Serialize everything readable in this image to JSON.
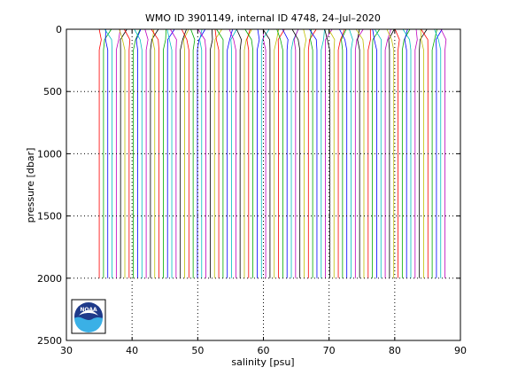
{
  "chart_data": {
    "type": "line",
    "title": "WMO ID 3901149, internal ID 4748, 24–Jul–2020",
    "xlabel": "salinity [psu]",
    "ylabel": "pressure [dbar]",
    "xlim": [
      30,
      90
    ],
    "ylim": [
      0,
      2500
    ],
    "y_reversed": true,
    "xticks": [
      30,
      40,
      50,
      60,
      70,
      80,
      90
    ],
    "yticks": [
      0,
      500,
      1000,
      1500,
      2000,
      2500
    ],
    "grid": "dotted",
    "profiles": {
      "count": 82,
      "first_surface_salinity": 35.0,
      "offset_step": 0.65,
      "pressure_top": 0,
      "pressure_bottom": 2000,
      "colors": [
        "#ff0000",
        "#00aa00",
        "#0000ff",
        "#00bfbf",
        "#bf00bf",
        "#000000",
        "#bfbf00"
      ]
    },
    "logo": {
      "present": true
    }
  }
}
